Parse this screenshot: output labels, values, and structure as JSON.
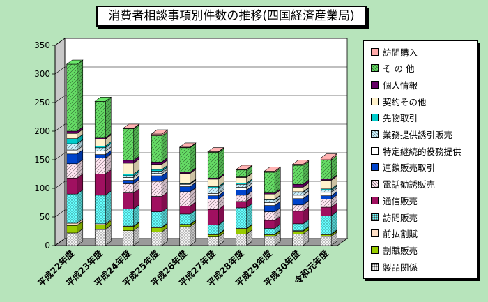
{
  "title": "消費者相談事項別件数の推移(四国経済産業局)",
  "chart_data": {
    "type": "bar",
    "stacked": true,
    "style": "3d-column",
    "title": "消費者相談事項別件数の推移(四国経済産業局)",
    "categories": [
      "平成22年度",
      "平成23年度",
      "平成24年度",
      "平成25年度",
      "平成26年度",
      "平成27年度",
      "平成28年度",
      "平成29年度",
      "平成30年度",
      "令和元年度"
    ],
    "ylim": [
      0,
      350
    ],
    "yticks": [
      0,
      50,
      100,
      150,
      200,
      250,
      300,
      350
    ],
    "grid": true,
    "legend_position": "right",
    "series": [
      {
        "name": "製品関係",
        "color": "#f2f2f2",
        "pattern": "dots",
        "values": [
          22,
          28,
          26,
          24,
          33,
          15,
          20,
          16,
          20,
          16
        ]
      },
      {
        "name": "割賦販売",
        "color": "#99cc00",
        "values": [
          13,
          8,
          7,
          7,
          3,
          4,
          9,
          3,
          5,
          3
        ]
      },
      {
        "name": "前払割賦",
        "color": "#ffe0c8",
        "values": [
          4,
          2,
          1,
          1,
          1,
          1,
          1,
          1,
          1,
          1
        ]
      },
      {
        "name": "訪問販売",
        "color": "#66ffff",
        "pattern": "dots",
        "values": [
          51,
          50,
          30,
          27,
          18,
          16,
          36,
          10,
          12,
          32
        ]
      },
      {
        "name": "通信販売",
        "color": "#a01060",
        "values": [
          28,
          37,
          28,
          27,
          14,
          27,
          11,
          14,
          22,
          15
        ]
      },
      {
        "name": "電話勧誘販売",
        "color": "#ffe6f2",
        "pattern": "hatch",
        "values": [
          25,
          28,
          16,
          26,
          25,
          18,
          11,
          15,
          11,
          14
        ]
      },
      {
        "name": "連鎖販売取引",
        "color": "#0044cc",
        "values": [
          17,
          6,
          6,
          10,
          9,
          6,
          9,
          11,
          11,
          6
        ]
      },
      {
        "name": "特定継続的役務提供",
        "color": "#ffffff",
        "values": [
          7,
          6,
          5,
          4,
          4,
          4,
          5,
          5,
          6,
          6
        ]
      },
      {
        "name": "業務提供誘引販売",
        "color": "#ccf2ff",
        "pattern": "hatch",
        "values": [
          11,
          6,
          3,
          4,
          1,
          10,
          5,
          5,
          5,
          4
        ]
      },
      {
        "name": "先物取引",
        "color": "#00cccc",
        "values": [
          9,
          3,
          3,
          3,
          1,
          2,
          2,
          1,
          1,
          2
        ]
      },
      {
        "name": "契約その他",
        "color": "#fff2cc",
        "values": [
          9,
          12,
          19,
          9,
          17,
          13,
          10,
          9,
          8,
          15
        ]
      },
      {
        "name": "個人情報",
        "color": "#660066",
        "values": [
          4,
          2,
          5,
          4,
          2,
          2,
          1,
          2,
          5,
          2
        ]
      },
      {
        "name": "そ の 他",
        "color": "#66dd66",
        "pattern": "hatch",
        "values": [
          117,
          64,
          55,
          46,
          43,
          45,
          12,
          36,
          33,
          34
        ]
      },
      {
        "name": "訪問購入",
        "color": "#ffaaaa",
        "values": [
          0,
          0,
          1,
          3,
          1,
          1,
          1,
          2,
          2,
          3
        ]
      }
    ]
  }
}
